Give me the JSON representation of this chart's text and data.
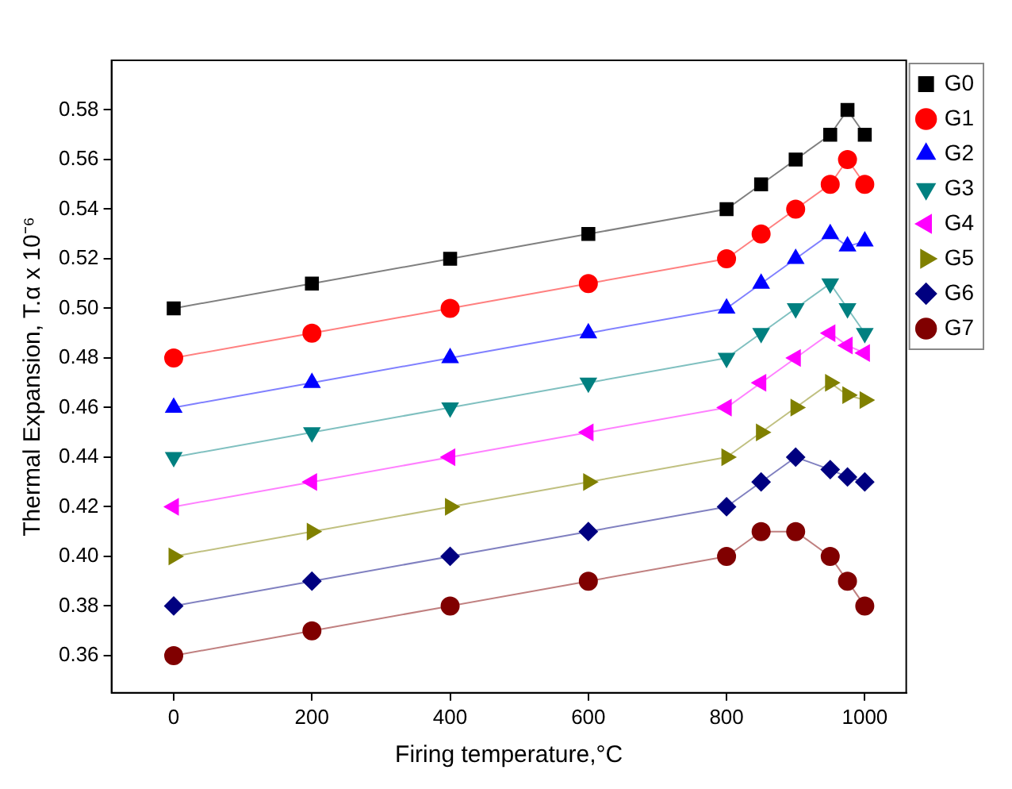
{
  "chart_data": {
    "type": "line",
    "xlabel": "Firing temperature,°C",
    "ylabel": "Thermal Expansion, T.α x 10⁻⁶",
    "x": [
      0,
      200,
      400,
      600,
      800,
      850,
      900,
      950,
      975,
      1000
    ],
    "series": [
      {
        "name": "G0",
        "color": "#000000",
        "marker": "square",
        "values": [
          0.5,
          0.51,
          0.52,
          0.53,
          0.54,
          0.55,
          0.56,
          0.57,
          0.58,
          0.57
        ]
      },
      {
        "name": "G1",
        "color": "#ff0000",
        "marker": "circle",
        "values": [
          0.48,
          0.49,
          0.5,
          0.51,
          0.52,
          0.53,
          0.54,
          0.55,
          0.56,
          0.55
        ]
      },
      {
        "name": "G2",
        "color": "#0000ff",
        "marker": "triangle",
        "values": [
          0.46,
          0.47,
          0.48,
          0.49,
          0.5,
          0.51,
          0.52,
          0.53,
          0.525,
          0.527
        ]
      },
      {
        "name": "G3",
        "color": "#008080",
        "marker": "triangle-down",
        "values": [
          0.44,
          0.45,
          0.46,
          0.47,
          0.48,
          0.49,
          0.5,
          0.51,
          0.5,
          0.49
        ]
      },
      {
        "name": "G4",
        "color": "#ff00ff",
        "marker": "triangle-left",
        "values": [
          0.42,
          0.43,
          0.44,
          0.45,
          0.46,
          0.47,
          0.48,
          0.49,
          0.485,
          0.482
        ]
      },
      {
        "name": "G5",
        "color": "#808000",
        "marker": "triangle-right",
        "values": [
          0.4,
          0.41,
          0.42,
          0.43,
          0.44,
          0.45,
          0.46,
          0.47,
          0.465,
          0.463
        ]
      },
      {
        "name": "G6",
        "color": "#000080",
        "marker": "diamond",
        "values": [
          0.38,
          0.39,
          0.4,
          0.41,
          0.42,
          0.43,
          0.44,
          0.435,
          0.432,
          0.43
        ]
      },
      {
        "name": "G7",
        "color": "#800000",
        "marker": "circle",
        "values": [
          0.36,
          0.37,
          0.38,
          0.39,
          0.4,
          0.41,
          0.41,
          0.4,
          0.39,
          0.38
        ]
      }
    ],
    "xlim": [
      -90,
      1060
    ],
    "xticks": [
      0,
      200,
      400,
      600,
      800,
      1000
    ],
    "ylim": [
      0.345,
      0.6
    ],
    "yticks": [
      {
        "value": 0.36,
        "label": "0.36"
      },
      {
        "value": 0.38,
        "label": "0.38"
      },
      {
        "value": 0.4,
        "label": "0.40"
      },
      {
        "value": 0.42,
        "label": "0.42"
      },
      {
        "value": 0.44,
        "label": "0.44"
      },
      {
        "value": 0.46,
        "label": "0.46"
      },
      {
        "value": 0.48,
        "label": "0.48"
      },
      {
        "value": 0.5,
        "label": "0.50"
      },
      {
        "value": 0.52,
        "label": "0.52"
      },
      {
        "value": 0.54,
        "label": "0.54"
      },
      {
        "value": 0.56,
        "label": "0.56"
      },
      {
        "value": 0.58,
        "label": "0.58"
      }
    ],
    "grid": false,
    "legend": "top right",
    "line_style": "solid"
  }
}
